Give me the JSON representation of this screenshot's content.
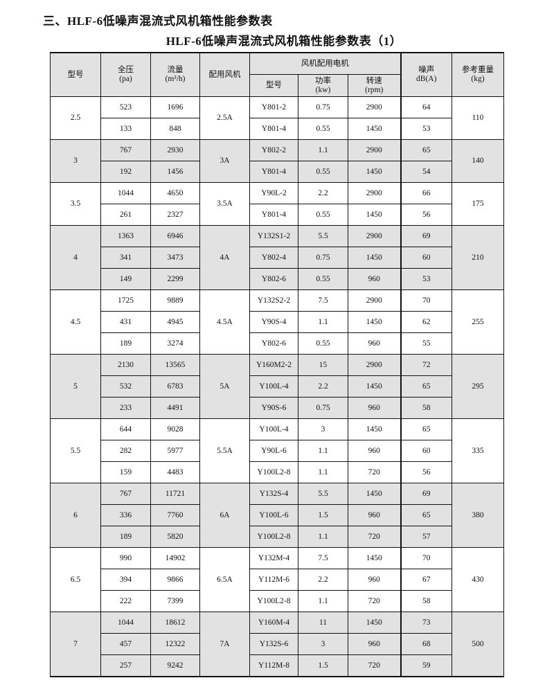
{
  "title": "三、HLF-6低噪声混流式风机箱性能参数表",
  "subtitle": "HLF-6低噪声混流式风机箱性能参数表（1）",
  "colors": {
    "shade": "#e2e2e2",
    "border": "#111111"
  },
  "header": {
    "model": "型号",
    "pressure": "全压",
    "pressure_unit": "(pa)",
    "flow": "流量",
    "flow_unit": "(m³/h)",
    "fan": "配用风机",
    "motor_group": "风机配用电机",
    "motor_model": "型号",
    "power": "功率",
    "power_unit": "(kw)",
    "speed": "转速",
    "speed_unit": "(rpm)",
    "noise": "噪声",
    "noise_unit": "dB(A)",
    "weight": "参考重量",
    "weight_unit": "(kg)"
  },
  "groups": [
    {
      "model": "2.5",
      "fan": "2.5A",
      "weight": "110",
      "shaded": false,
      "rows": [
        {
          "pressure": "523",
          "flow": "1696",
          "motor": "Y801-2",
          "power": "0.75",
          "speed": "2900",
          "noise": "64"
        },
        {
          "pressure": "133",
          "flow": "848",
          "motor": "Y801-4",
          "power": "0.55",
          "speed": "1450",
          "noise": "53"
        }
      ]
    },
    {
      "model": "3",
      "fan": "3A",
      "weight": "140",
      "shaded": true,
      "rows": [
        {
          "pressure": "767",
          "flow": "2930",
          "motor": "Y802-2",
          "power": "1.1",
          "speed": "2900",
          "noise": "65"
        },
        {
          "pressure": "192",
          "flow": "1456",
          "motor": "Y801-4",
          "power": "0.55",
          "speed": "1450",
          "noise": "54"
        }
      ]
    },
    {
      "model": "3.5",
      "fan": "3.5A",
      "weight": "175",
      "shaded": false,
      "rows": [
        {
          "pressure": "1044",
          "flow": "4650",
          "motor": "Y90L-2",
          "power": "2.2",
          "speed": "2900",
          "noise": "66"
        },
        {
          "pressure": "261",
          "flow": "2327",
          "motor": "Y801-4",
          "power": "0.55",
          "speed": "1450",
          "noise": "56"
        }
      ]
    },
    {
      "model": "4",
      "fan": "4A",
      "weight": "210",
      "shaded": true,
      "rows": [
        {
          "pressure": "1363",
          "flow": "6946",
          "motor": "Y132S1-2",
          "power": "5.5",
          "speed": "2900",
          "noise": "69"
        },
        {
          "pressure": "341",
          "flow": "3473",
          "motor": "Y802-4",
          "power": "0.75",
          "speed": "1450",
          "noise": "60"
        },
        {
          "pressure": "149",
          "flow": "2299",
          "motor": "Y802-6",
          "power": "0.55",
          "speed": "960",
          "noise": "53"
        }
      ]
    },
    {
      "model": "4.5",
      "fan": "4.5A",
      "weight": "255",
      "shaded": false,
      "rows": [
        {
          "pressure": "1725",
          "flow": "9889",
          "motor": "Y132S2-2",
          "power": "7.5",
          "speed": "2900",
          "noise": "70"
        },
        {
          "pressure": "431",
          "flow": "4945",
          "motor": "Y90S-4",
          "power": "1.1",
          "speed": "1450",
          "noise": "62"
        },
        {
          "pressure": "189",
          "flow": "3274",
          "motor": "Y802-6",
          "power": "0.55",
          "speed": "960",
          "noise": "55"
        }
      ]
    },
    {
      "model": "5",
      "fan": "5A",
      "weight": "295",
      "shaded": true,
      "rows": [
        {
          "pressure": "2130",
          "flow": "13565",
          "motor": "Y160M2-2",
          "power": "15",
          "speed": "2900",
          "noise": "72"
        },
        {
          "pressure": "532",
          "flow": "6783",
          "motor": "Y100L-4",
          "power": "2.2",
          "speed": "1450",
          "noise": "65"
        },
        {
          "pressure": "233",
          "flow": "4491",
          "motor": "Y90S-6",
          "power": "0.75",
          "speed": "960",
          "noise": "58"
        }
      ]
    },
    {
      "model": "5.5",
      "fan": "5.5A",
      "weight": "335",
      "shaded": false,
      "rows": [
        {
          "pressure": "644",
          "flow": "9028",
          "motor": "Y100L-4",
          "power": "3",
          "speed": "1450",
          "noise": "65"
        },
        {
          "pressure": "282",
          "flow": "5977",
          "motor": "Y90L-6",
          "power": "1.1",
          "speed": "960",
          "noise": "60"
        },
        {
          "pressure": "159",
          "flow": "4483",
          "motor": "Y100L2-8",
          "power": "1.1",
          "speed": "720",
          "noise": "56"
        }
      ]
    },
    {
      "model": "6",
      "fan": "6A",
      "weight": "380",
      "shaded": true,
      "rows": [
        {
          "pressure": "767",
          "flow": "11721",
          "motor": "Y132S-4",
          "power": "5.5",
          "speed": "1450",
          "noise": "69"
        },
        {
          "pressure": "336",
          "flow": "7760",
          "motor": "Y100L-6",
          "power": "1.5",
          "speed": "960",
          "noise": "65"
        },
        {
          "pressure": "189",
          "flow": "5820",
          "motor": "Y100L2-8",
          "power": "1.1",
          "speed": "720",
          "noise": "57"
        }
      ]
    },
    {
      "model": "6.5",
      "fan": "6.5A",
      "weight": "430",
      "shaded": false,
      "rows": [
        {
          "pressure": "990",
          "flow": "14902",
          "motor": "Y132M-4",
          "power": "7.5",
          "speed": "1450",
          "noise": "70"
        },
        {
          "pressure": "394",
          "flow": "9866",
          "motor": "Y112M-6",
          "power": "2.2",
          "speed": "960",
          "noise": "67"
        },
        {
          "pressure": "222",
          "flow": "7399",
          "motor": "Y100L2-8",
          "power": "1.1",
          "speed": "720",
          "noise": "58"
        }
      ]
    },
    {
      "model": "7",
      "fan": "7A",
      "weight": "500",
      "shaded": true,
      "rows": [
        {
          "pressure": "1044",
          "flow": "18612",
          "motor": "Y160M-4",
          "power": "11",
          "speed": "1450",
          "noise": "73"
        },
        {
          "pressure": "457",
          "flow": "12322",
          "motor": "Y132S-6",
          "power": "3",
          "speed": "960",
          "noise": "68"
        },
        {
          "pressure": "257",
          "flow": "9242",
          "motor": "Y112M-8",
          "power": "1.5",
          "speed": "720",
          "noise": "59"
        }
      ]
    }
  ]
}
